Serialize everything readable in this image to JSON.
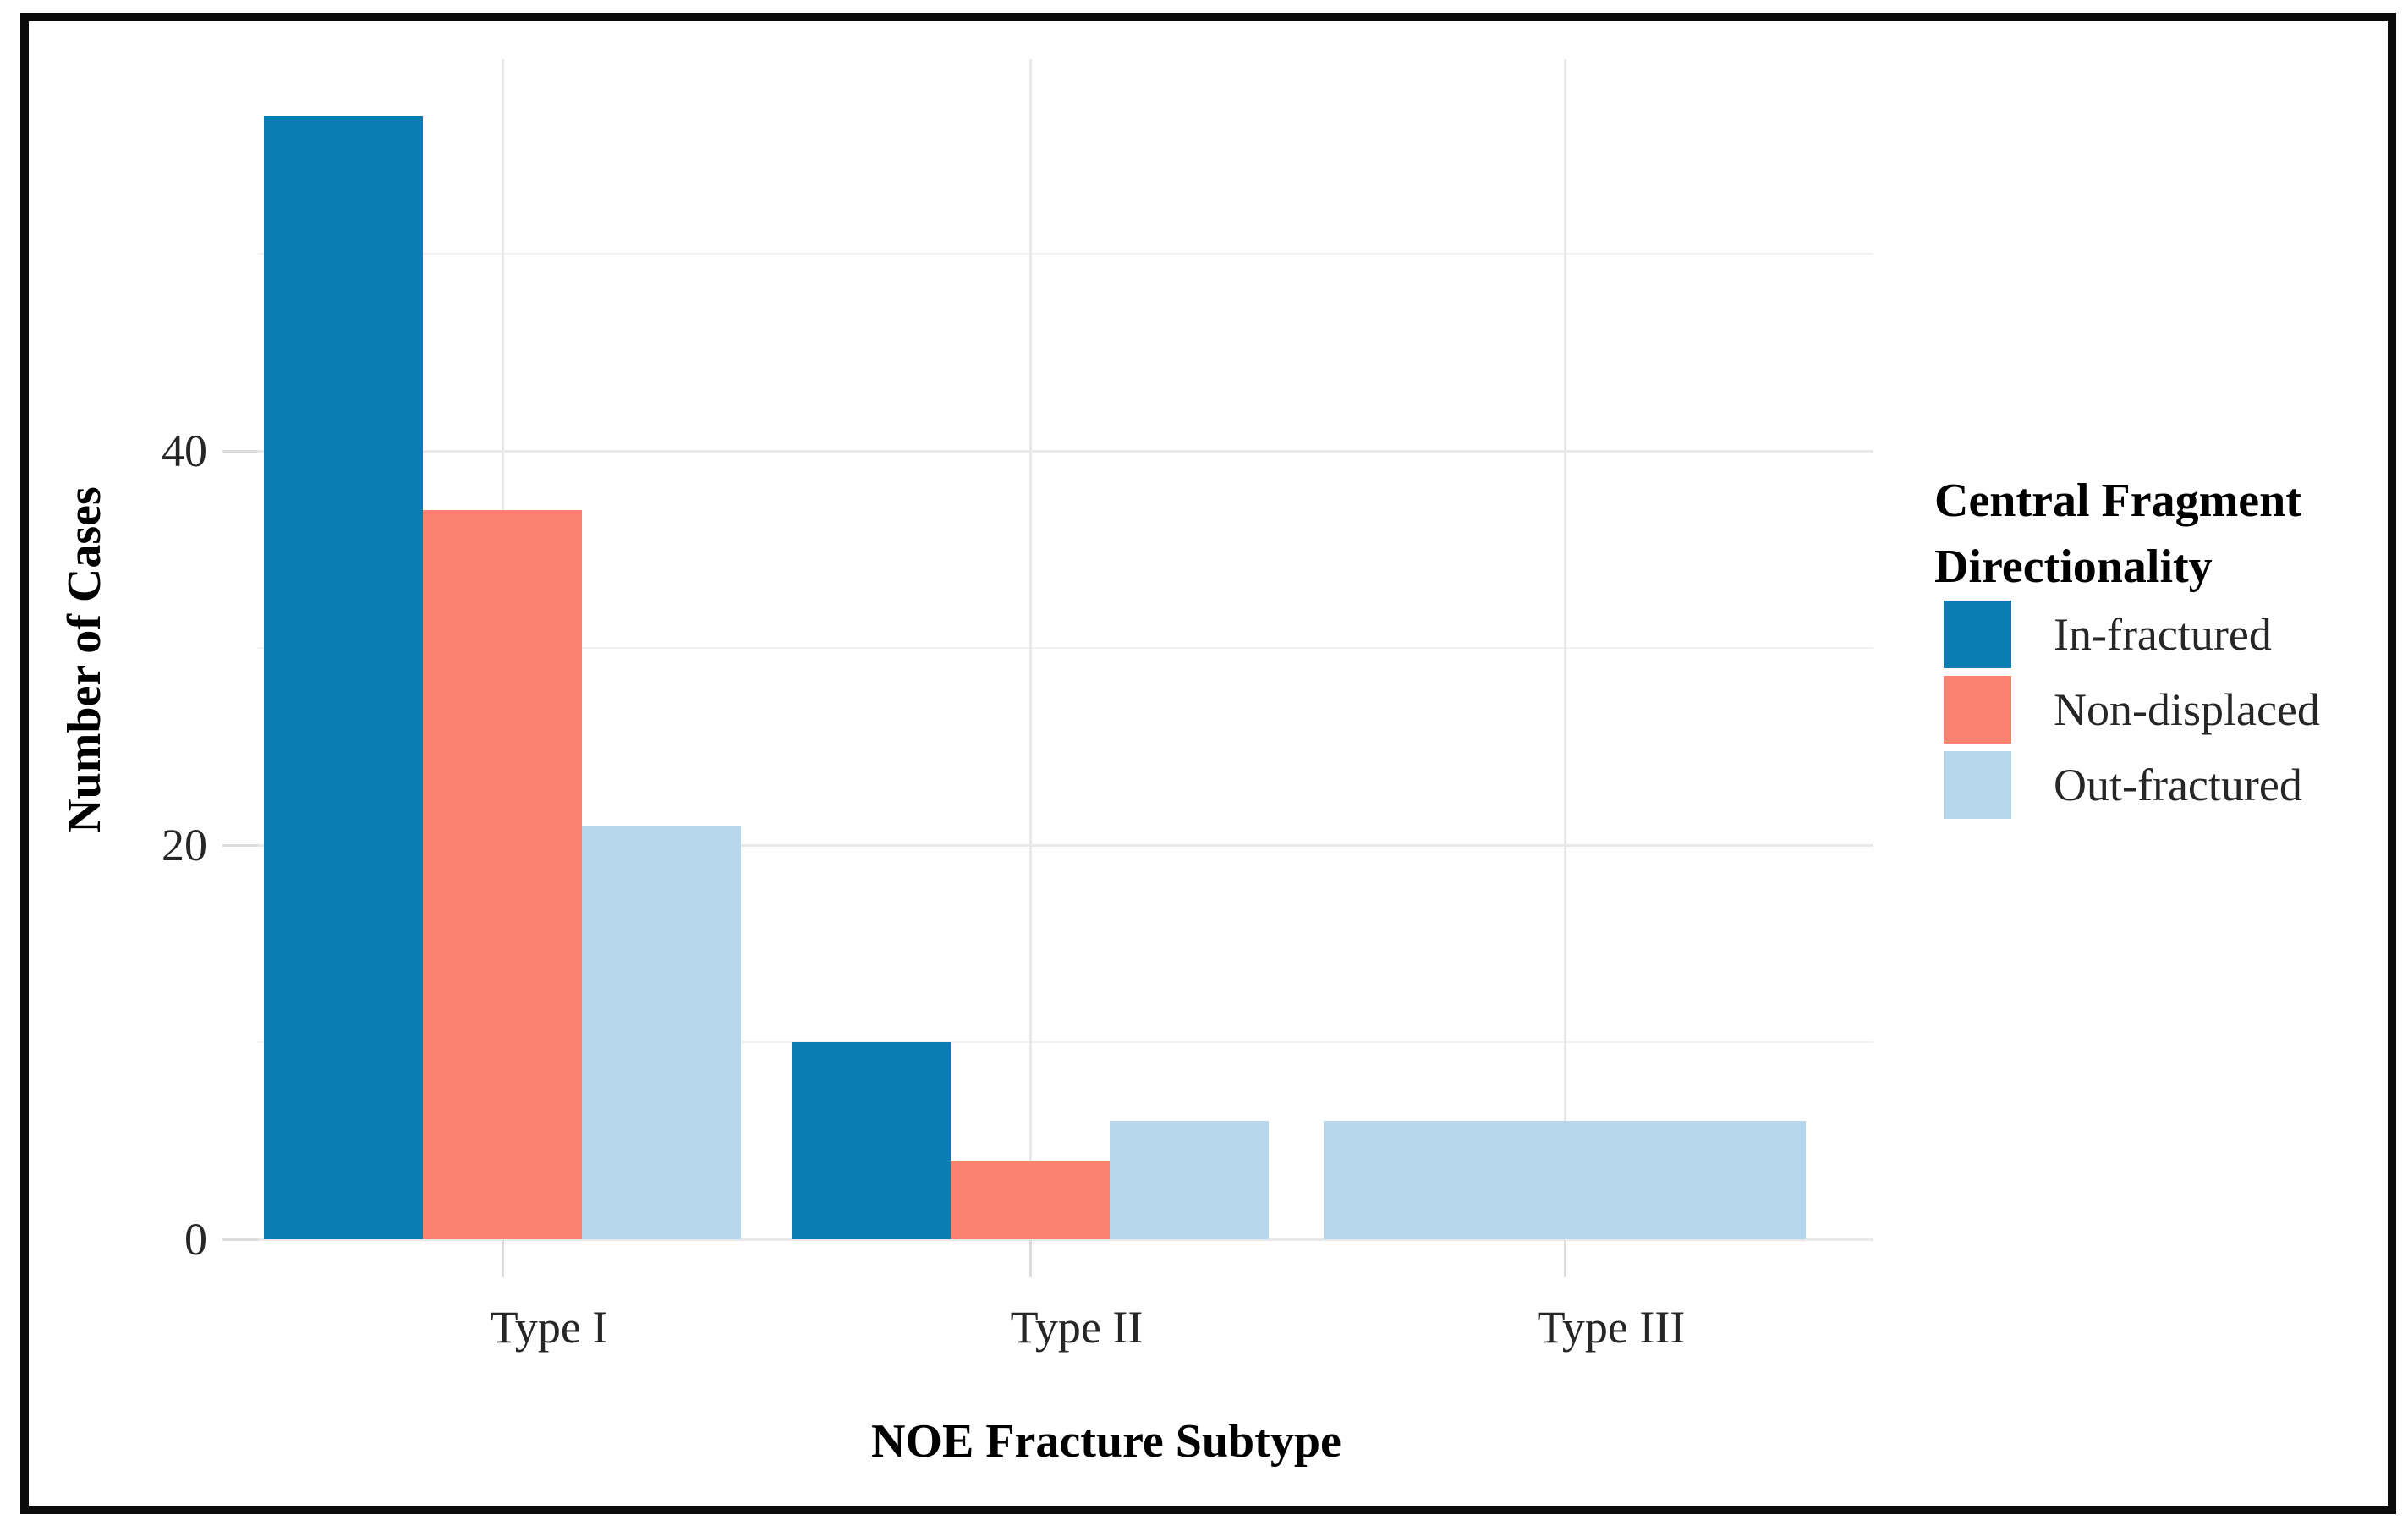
{
  "figure": {
    "y_axis_title": "Number of Cases",
    "x_axis_title": "NOE Fracture Subtype"
  },
  "legend": {
    "title_line1": "Central Fragment",
    "title_line2": "Directionality",
    "items": [
      {
        "label": "In-fractured",
        "color": "#0a7eb3"
      },
      {
        "label": "Non-displaced",
        "color": "#fb8171"
      },
      {
        "label": "Out-fractured",
        "color": "#b7d7ec"
      }
    ]
  },
  "chart_data": {
    "type": "bar",
    "grouping": "dodged",
    "title": "",
    "xlabel": "NOE Fracture Subtype",
    "ylabel": "Number of Cases",
    "categories": [
      "Type I",
      "Type II",
      "Type III"
    ],
    "series": [
      {
        "name": "In-fractured",
        "color": "#0a7eb3",
        "values": [
          57,
          10,
          null
        ]
      },
      {
        "name": "Non-displaced",
        "color": "#fb8171",
        "values": [
          37,
          4,
          null
        ]
      },
      {
        "name": "Out-fractured",
        "color": "#b7d7ec",
        "values": [
          21,
          6,
          6
        ]
      }
    ],
    "y_ticks_major": [
      0,
      20,
      40
    ],
    "y_ticks_minor": [
      10,
      30,
      50
    ],
    "ylim": [
      0,
      60
    ],
    "grid": true,
    "legend_title": "Central Fragment Directionality",
    "legend_position": "right"
  }
}
